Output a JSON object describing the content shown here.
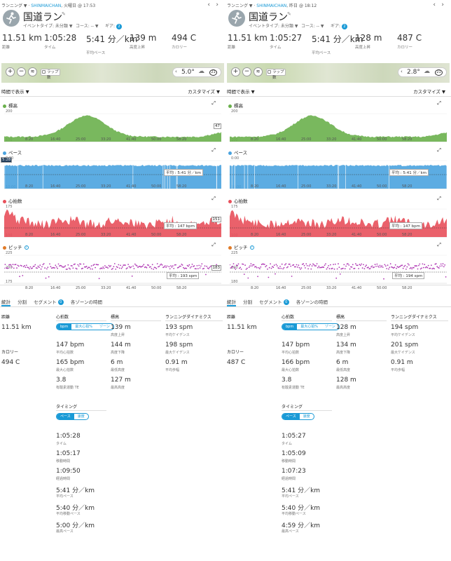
{
  "panels": [
    {
      "breadcrumb": {
        "category": "ランニング",
        "user": "SHINMAICHAN",
        "date": "火曜日 @ 17:53"
      },
      "title": "国道ラン",
      "event_type": "イベントタイプ: 未分類",
      "course": "コース: --",
      "gear": "ギア:",
      "gear_count": "2",
      "stats": [
        {
          "value": "11.51 km",
          "label": "距離"
        },
        {
          "value": "1:05:28",
          "label": "タイム"
        },
        {
          "value": "5:41 分／km",
          "label": "平均ペース"
        },
        {
          "value": "139 m",
          "label": "高度上昇"
        },
        {
          "value": "494 C",
          "label": "カロリー"
        }
      ],
      "map": {
        "lap_label": "ラップ数",
        "temp": "5.0°",
        "wind": "21"
      },
      "view_label": "時間で表示",
      "customize_label": "カスタマイズ",
      "charts": {
        "elevation": {
          "label": "標高",
          "y_top": "200",
          "y_bottom": "100",
          "x_ticks": [
            "8:20",
            "16:40",
            "25:00",
            "33:20",
            "41:40",
            "50:00",
            "58:20"
          ],
          "badge": "47"
        },
        "pace": {
          "label": "ペース",
          "y_top": "0:00",
          "y_bottom": "10:00",
          "x_ticks": [
            "8:20",
            "16:40",
            "25:00",
            "33:20",
            "41:40",
            "50:00",
            "58:20"
          ],
          "avg": "平均 : 5:41 分／km",
          "badge": "5:28"
        },
        "hr": {
          "label": "心拍数",
          "y_top": "175",
          "y_bottom": "100",
          "x_ticks": [
            "8:20",
            "16:40",
            "25:00",
            "33:20",
            "41:40",
            "50:00",
            "58:20"
          ],
          "avg": "平均 : 147 bpm",
          "badge": "151"
        },
        "cadence": {
          "label": "ピッチ",
          "y_top": "225",
          "y_mid": "200",
          "y_bottom": "175",
          "x_ticks": [
            "8:20",
            "16:40",
            "25:00",
            "33:20",
            "41:40",
            "50:00",
            "58:20"
          ],
          "avg": "平均 : 193 spm",
          "badge": "183"
        }
      },
      "tabs": {
        "stats": "統計",
        "laps": "分割",
        "segments": "セグメント",
        "segments_count": "0",
        "zones": "各ゾーンの時間"
      },
      "left_stats": [
        {
          "value": "11.51 km",
          "label": "距離",
          "header": "距離"
        },
        {
          "value": "494 C",
          "label": "カロリー",
          "header": "カロリー"
        }
      ],
      "hr_section": {
        "header": "心拍数",
        "pills": [
          "bpm",
          "最大心拍%",
          "ゾーン"
        ],
        "items": [
          {
            "value": "147 bpm",
            "label": "平均心拍数"
          },
          {
            "value": "165 bpm",
            "label": "最大心拍数"
          },
          {
            "value": "3.8",
            "label": "有酸素運動 TE"
          }
        ]
      },
      "elev_section": {
        "header": "標高",
        "items": [
          {
            "value": "139 m",
            "label": "高度上昇"
          },
          {
            "value": "144 m",
            "label": "高度下降"
          },
          {
            "value": "6 m",
            "label": "最低高度"
          },
          {
            "value": "127 m",
            "label": "最高高度"
          }
        ]
      },
      "dyn_section": {
        "header": "ランニングダイナミクス",
        "items": [
          {
            "value": "193 spm",
            "label": "平均ケイデンス"
          },
          {
            "value": "198 spm",
            "label": "最大ケイデンス"
          },
          {
            "value": "0.91 m",
            "label": "平均歩幅"
          }
        ]
      },
      "timing": {
        "header": "タイミング",
        "pills": [
          "ペース",
          "速度"
        ],
        "items": [
          {
            "value": "1:05:28",
            "label": "タイム"
          },
          {
            "value": "1:05:17",
            "label": "移動時間"
          },
          {
            "value": "1:09:50",
            "label": "経過時間"
          },
          {
            "value": "5:41 分／km",
            "label": "平均ペース"
          },
          {
            "value": "5:40 分／km",
            "label": "平均移動ペース"
          },
          {
            "value": "5:00 分／km",
            "label": "最高ペース"
          }
        ]
      }
    },
    {
      "breadcrumb": {
        "category": "ランニング",
        "user": "SHINMAICHAN",
        "date": "昨日 @ 18:12"
      },
      "title": "国道ラン",
      "event_type": "イベントタイプ: 未分類",
      "course": "コース: --",
      "gear": "ギア:",
      "gear_count": "2",
      "stats": [
        {
          "value": "11.51 km",
          "label": "距離"
        },
        {
          "value": "1:05:27",
          "label": "タイム"
        },
        {
          "value": "5:41 分／km",
          "label": "平均ペース"
        },
        {
          "value": "128 m",
          "label": "高度上昇"
        },
        {
          "value": "487 C",
          "label": "カロリー"
        }
      ],
      "map": {
        "lap_label": "ラップ数",
        "temp": "2.8°",
        "wind": "21"
      },
      "view_label": "時間で表示",
      "customize_label": "カスタマイズ",
      "charts": {
        "elevation": {
          "label": "標高",
          "y_top": "200",
          "y_bottom": "100",
          "x_ticks": [
            "8:20",
            "16:40",
            "25:00",
            "33:20",
            "41:40",
            "50:00",
            "58:20"
          ],
          "badge": ""
        },
        "pace": {
          "label": "ペース",
          "y_top": "0:00",
          "y_bottom": "10:00",
          "x_ticks": [
            "8:20",
            "16:40",
            "25:00",
            "33:20",
            "41:40",
            "50:00",
            "58:20"
          ],
          "avg": "平均 : 5:41 分／km",
          "badge": ""
        },
        "hr": {
          "label": "心拍数",
          "y_top": "175",
          "y_bottom": "100",
          "x_ticks": [
            "8:20",
            "16:40",
            "25:00",
            "33:20",
            "41:40",
            "50:00",
            "58:20"
          ],
          "avg": "平均 : 147 bpm",
          "badge": ""
        },
        "cadence": {
          "label": "ピッチ",
          "y_top": "225",
          "y_mid": "200",
          "y_bottom": "180",
          "x_ticks": [
            "8:20",
            "16:40",
            "25:00",
            "33:20",
            "41:40",
            "50:00",
            "58:20"
          ],
          "avg": "平均 : 194 spm",
          "badge": ""
        }
      },
      "tabs": {
        "stats": "統計",
        "laps": "分割",
        "segments": "セグメント",
        "segments_count": "0",
        "zones": "各ゾーンの時間"
      },
      "left_stats": [
        {
          "value": "11.51 km",
          "label": "距離",
          "header": "距離"
        },
        {
          "value": "487 C",
          "label": "カロリー",
          "header": "カロリー"
        }
      ],
      "hr_section": {
        "header": "心拍数",
        "pills": [
          "bpm",
          "最大心拍%",
          "ゾーン"
        ],
        "items": [
          {
            "value": "147 bpm",
            "label": "平均心拍数"
          },
          {
            "value": "166 bpm",
            "label": "最大心拍数"
          },
          {
            "value": "3.8",
            "label": "有酸素運動 TE"
          }
        ]
      },
      "elev_section": {
        "header": "標高",
        "items": [
          {
            "value": "128 m",
            "label": "高度上昇"
          },
          {
            "value": "134 m",
            "label": "高度下降"
          },
          {
            "value": "6 m",
            "label": "最低高度"
          },
          {
            "value": "128 m",
            "label": "最高高度"
          }
        ]
      },
      "dyn_section": {
        "header": "ランニングダイナミクス",
        "items": [
          {
            "value": "194 spm",
            "label": "平均ケイデンス"
          },
          {
            "value": "201 spm",
            "label": "最大ケイデンス"
          },
          {
            "value": "0.91 m",
            "label": "平均歩幅"
          }
        ]
      },
      "timing": {
        "header": "タイミング",
        "pills": [
          "ペース",
          "速度"
        ],
        "items": [
          {
            "value": "1:05:27",
            "label": "タイム"
          },
          {
            "value": "1:05:09",
            "label": "移動時間"
          },
          {
            "value": "1:07:23",
            "label": "経過時間"
          },
          {
            "value": "5:41 分／km",
            "label": "平均ペース"
          },
          {
            "value": "5:40 分／km",
            "label": "平均移動ペース"
          },
          {
            "value": "4:59 分／km",
            "label": "最高ペース"
          }
        ]
      }
    }
  ],
  "colors": {
    "accent": "#1a9ad6",
    "elevation": "#6ab04c",
    "pace": "#4aa3df",
    "hr": "#e8505b",
    "cadence": "#b03ab5"
  }
}
